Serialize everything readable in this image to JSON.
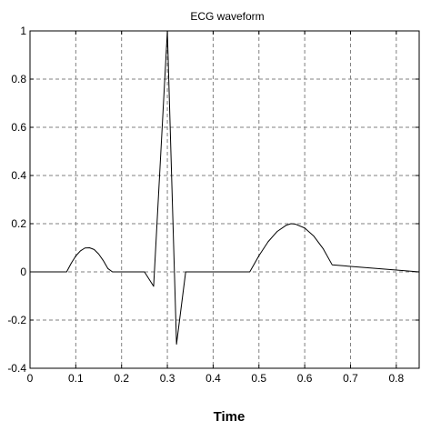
{
  "chart_data": {
    "type": "line",
    "title": "ECG waveform",
    "xlabel": "Time",
    "ylabel": "",
    "xlim": [
      0,
      0.85
    ],
    "ylim": [
      -0.4,
      1
    ],
    "xticks": [
      0,
      0.1,
      0.2,
      0.3,
      0.4,
      0.5,
      0.6,
      0.7,
      0.8
    ],
    "xtick_labels": [
      "0",
      "0.1",
      "0.2",
      "0.3",
      "0.4",
      "0.5",
      "0.6",
      "0.7",
      "0.8"
    ],
    "yticks": [
      -0.4,
      -0.2,
      0,
      0.2,
      0.4,
      0.6,
      0.8,
      1
    ],
    "ytick_labels": [
      "-0.4",
      "-0.2",
      "0",
      "0.2",
      "0.4",
      "0.6",
      "0.8",
      "1"
    ],
    "grid": true,
    "line_color": "#000000",
    "grid_color": "#808080",
    "series": [
      {
        "x": [
          0,
          0.08,
          0.09,
          0.1,
          0.11,
          0.12,
          0.13,
          0.14,
          0.15,
          0.16,
          0.17,
          0.18,
          0.25,
          0.27,
          0.3,
          0.32,
          0.34,
          0.48,
          0.5,
          0.52,
          0.54,
          0.56,
          0.57,
          0.58,
          0.6,
          0.62,
          0.64,
          0.66,
          0.85
        ],
        "y": [
          0,
          0,
          0.036,
          0.066,
          0.087,
          0.099,
          0.1,
          0.093,
          0.074,
          0.047,
          0.014,
          0,
          0,
          -0.06,
          1,
          -0.3,
          0,
          0,
          0.067,
          0.125,
          0.168,
          0.194,
          0.2,
          0.198,
          0.182,
          0.148,
          0.097,
          0.029,
          0
        ]
      }
    ]
  }
}
